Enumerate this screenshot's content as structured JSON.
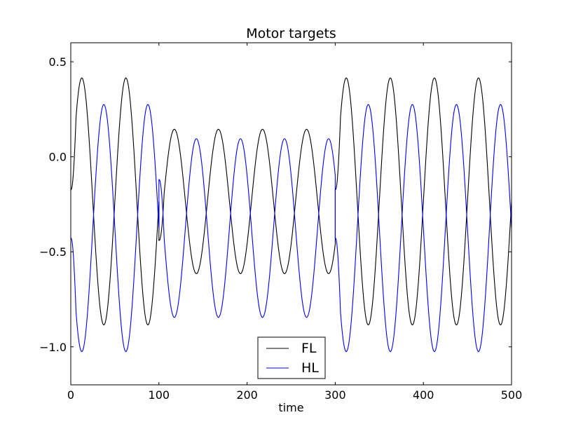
{
  "chart_data": {
    "type": "line",
    "title": "Motor targets",
    "xlabel": "time",
    "ylabel": "",
    "xlim": [
      0,
      500
    ],
    "ylim": [
      -1.2,
      0.6
    ],
    "xticks": [
      0,
      100,
      200,
      300,
      400,
      500
    ],
    "xtick_labels": [
      "0",
      "100",
      "200",
      "300",
      "400",
      "500"
    ],
    "yticks": [
      0.5,
      0.0,
      -0.5,
      -1.0
    ],
    "ytick_labels": [
      "0.5",
      "0.0",
      "−0.5",
      "−1.0"
    ],
    "grid": false,
    "legend_position": "bottom-center",
    "series": [
      {
        "name": "FL",
        "color": "#000000",
        "segments": [
          {
            "x_start": 0,
            "x_end": 100,
            "period": 50,
            "center": -0.235,
            "amplitude": 0.65,
            "first_peak_x": 12.5,
            "start_y": -0.17
          },
          {
            "x_start": 100,
            "x_end": 300,
            "period": 50,
            "center": -0.235,
            "amplitude": 0.38,
            "first_peak_x": 117.5,
            "start_y": -0.44
          },
          {
            "x_start": 300,
            "x_end": 500,
            "period": 50,
            "center": -0.235,
            "amplitude": 0.65,
            "first_peak_x": 312.5,
            "start_y": -0.17
          }
        ]
      },
      {
        "name": "HL",
        "color": "#0000ff",
        "segments": [
          {
            "x_start": 0,
            "x_end": 100,
            "period": 50,
            "center": -0.375,
            "amplitude": 0.65,
            "first_peak_x": 37.5,
            "start_y": -0.43
          },
          {
            "x_start": 100,
            "x_end": 300,
            "period": 50,
            "center": -0.375,
            "amplitude": 0.47,
            "first_peak_x": 142.5,
            "start_y": -0.12
          },
          {
            "x_start": 300,
            "x_end": 500,
            "period": 50,
            "center": -0.375,
            "amplitude": 0.65,
            "first_peak_x": 337.5,
            "start_y": -0.43
          }
        ]
      }
    ]
  }
}
